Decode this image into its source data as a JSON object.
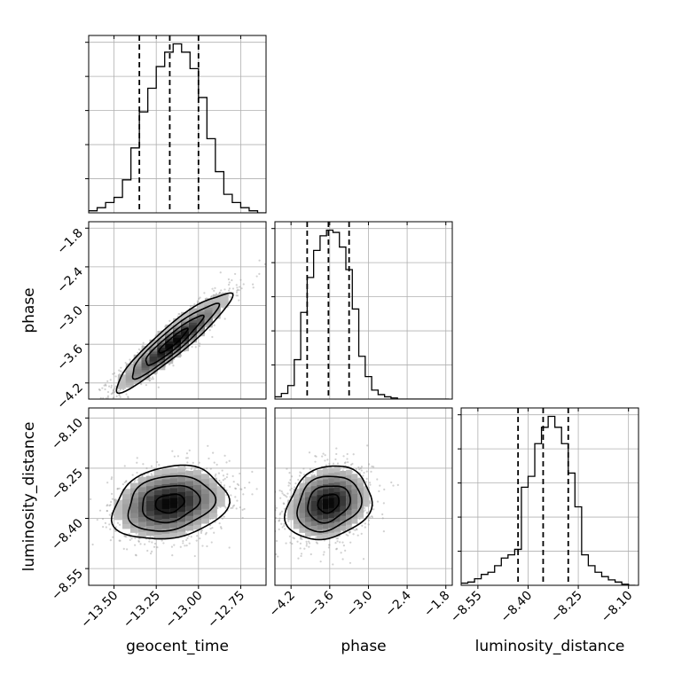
{
  "chart_data": {
    "type": "corner",
    "parameters": [
      {
        "name": "geocent_time",
        "range": [
          -13.65,
          -12.6
        ],
        "ticks": [
          -13.5,
          -13.25,
          -13.0,
          -12.75
        ],
        "tick_labels": [
          "−13.50",
          "−13.25",
          "−13.00",
          "−12.75"
        ],
        "quantiles": [
          -13.35,
          -13.17,
          -13.0
        ],
        "histogram": {
          "bin_edges": [
            -13.65,
            -13.6,
            -13.55,
            -13.5,
            -13.45,
            -13.4,
            -13.35,
            -13.3,
            -13.25,
            -13.2,
            -13.15,
            -13.1,
            -13.05,
            -13.0,
            -12.95,
            -12.9,
            -12.85,
            -12.8,
            -12.75,
            -12.7,
            -12.65,
            -12.6
          ],
          "counts": [
            2,
            5,
            10,
            15,
            32,
            63,
            98,
            121,
            142,
            156,
            164,
            156,
            140,
            112,
            72,
            40,
            18,
            10,
            5,
            2,
            0
          ]
        }
      },
      {
        "name": "phase",
        "range": [
          -4.45,
          -1.7
        ],
        "ticks": [
          -4.2,
          -3.6,
          -3.0,
          -2.4,
          -1.8
        ],
        "tick_labels": [
          "−4.2",
          "−3.6",
          "−3.0",
          "−2.4",
          "−1.8"
        ],
        "quantiles": [
          -3.95,
          -3.62,
          -3.3
        ],
        "histogram": {
          "bin_edges": [
            -4.45,
            -4.35,
            -4.25,
            -4.15,
            -4.05,
            -3.95,
            -3.85,
            -3.75,
            -3.65,
            -3.55,
            -3.45,
            -3.35,
            -3.25,
            -3.15,
            -3.05,
            -2.95,
            -2.85,
            -2.75,
            -2.65,
            -2.55,
            -2.45,
            -2.35,
            -2.25,
            -2.15,
            -2.05,
            -1.95,
            -1.85,
            -1.75
          ],
          "counts": [
            2,
            5,
            12,
            35,
            77,
            108,
            132,
            145,
            150,
            148,
            135,
            115,
            80,
            38,
            20,
            8,
            4,
            2,
            1,
            0,
            0,
            0,
            0,
            0,
            0,
            0,
            0
          ]
        }
      },
      {
        "name": "luminosity_distance",
        "range": [
          -8.6,
          -8.07
        ],
        "ticks": [
          -8.55,
          -8.4,
          -8.25,
          -8.1
        ],
        "tick_labels": [
          "−8.55",
          "−8.40",
          "−8.25",
          "−8.10"
        ],
        "quantiles": [
          -8.43,
          -8.355,
          -8.28
        ],
        "histogram": {
          "bin_edges": [
            -8.6,
            -8.58,
            -8.56,
            -8.54,
            -8.52,
            -8.5,
            -8.48,
            -8.46,
            -8.44,
            -8.42,
            -8.4,
            -8.38,
            -8.36,
            -8.34,
            -8.32,
            -8.3,
            -8.28,
            -8.26,
            -8.24,
            -8.22,
            -8.2,
            -8.18,
            -8.16,
            -8.14,
            -8.12,
            -8.1,
            -8.08
          ],
          "counts": [
            2,
            3,
            6,
            10,
            12,
            18,
            25,
            28,
            33,
            90,
            100,
            130,
            145,
            155,
            145,
            130,
            103,
            72,
            28,
            18,
            12,
            8,
            5,
            3,
            1,
            0
          ]
        }
      }
    ],
    "pairs": [
      {
        "x": "geocent_time",
        "y": "phase",
        "center": [
          -13.15,
          -3.55
        ],
        "std": [
          0.17,
          0.38
        ],
        "corr": 0.93
      },
      {
        "x": "geocent_time",
        "y": "luminosity_distance",
        "center": [
          -13.17,
          -8.355
        ],
        "std": [
          0.17,
          0.055
        ],
        "corr": 0.2
      },
      {
        "x": "phase",
        "y": "luminosity_distance",
        "center": [
          -3.62,
          -8.355
        ],
        "std": [
          0.33,
          0.055
        ],
        "corr": 0.2
      }
    ],
    "grid": true,
    "colors": {
      "line": "#000000",
      "grid": "#b0b0b0",
      "points": "#9a9a9a"
    }
  }
}
